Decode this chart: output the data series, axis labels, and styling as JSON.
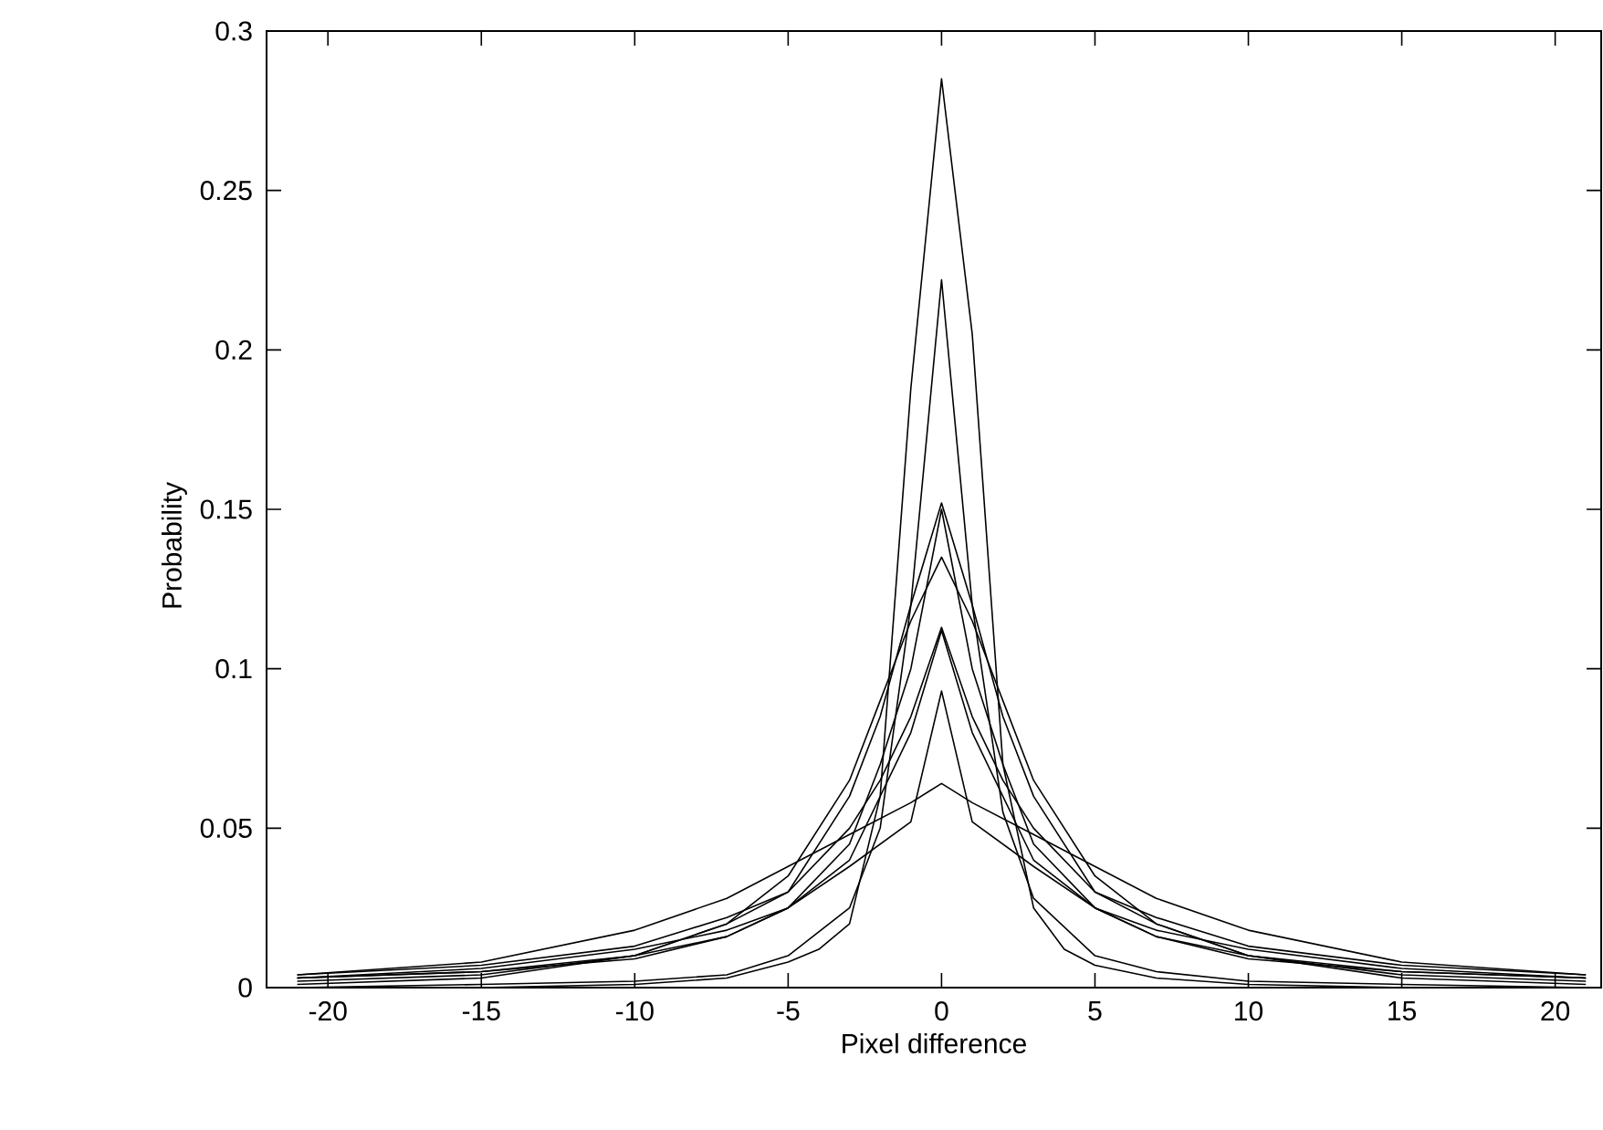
{
  "chart_data": {
    "type": "line",
    "xlabel": "Pixel difference",
    "ylabel": "Probability",
    "xlim": [
      -22,
      21.5
    ],
    "ylim": [
      0,
      0.3
    ],
    "xticks": [
      -20,
      -15,
      -10,
      -5,
      0,
      5,
      10,
      15,
      20
    ],
    "yticks": [
      0,
      0.05,
      0.1,
      0.15,
      0.2,
      0.25,
      0.3
    ],
    "grid": false,
    "marker": "none",
    "line_style": "solid",
    "series": [
      {
        "color": "#000000",
        "x": [
          -21,
          -15,
          -10,
          -7,
          -5,
          -4,
          -3,
          -2,
          -1,
          0,
          1,
          2,
          3,
          4,
          5,
          7,
          10,
          15,
          21
        ],
        "values": [
          0,
          0,
          0.001,
          0.003,
          0.008,
          0.012,
          0.02,
          0.06,
          0.188,
          0.285,
          0.205,
          0.07,
          0.025,
          0.012,
          0.007,
          0.003,
          0.001,
          0,
          0
        ]
      },
      {
        "color": "#000000",
        "x": [
          -21,
          -15,
          -10,
          -7,
          -5,
          -3,
          -2,
          -1,
          0,
          1,
          2,
          3,
          5,
          7,
          10,
          15,
          21
        ],
        "values": [
          0,
          0.001,
          0.002,
          0.004,
          0.01,
          0.025,
          0.05,
          0.12,
          0.222,
          0.12,
          0.055,
          0.028,
          0.01,
          0.005,
          0.002,
          0.001,
          0
        ]
      },
      {
        "color": "#000000",
        "x": [
          -21,
          -15,
          -10,
          -7,
          -5,
          -3,
          -2,
          -1,
          0,
          1,
          2,
          3,
          5,
          7,
          10,
          15,
          21
        ],
        "values": [
          0.002,
          0.004,
          0.01,
          0.02,
          0.03,
          0.06,
          0.085,
          0.12,
          0.152,
          0.12,
          0.085,
          0.06,
          0.03,
          0.02,
          0.01,
          0.004,
          0.002
        ]
      },
      {
        "color": "#000000",
        "x": [
          -21,
          -15,
          -10,
          -7,
          -5,
          -3,
          -2,
          -1,
          0,
          1,
          2,
          3,
          5,
          7,
          10,
          15,
          21
        ],
        "values": [
          0.003,
          0.005,
          0.009,
          0.016,
          0.025,
          0.045,
          0.07,
          0.1,
          0.15,
          0.1,
          0.07,
          0.045,
          0.025,
          0.016,
          0.009,
          0.005,
          0.003
        ]
      },
      {
        "color": "#000000",
        "x": [
          -21,
          -15,
          -10,
          -7,
          -5,
          -3,
          -2,
          -1,
          0,
          1,
          2,
          3,
          5,
          7,
          10,
          15,
          21
        ],
        "values": [
          0.001,
          0.003,
          0.01,
          0.02,
          0.035,
          0.065,
          0.09,
          0.115,
          0.135,
          0.115,
          0.09,
          0.065,
          0.035,
          0.02,
          0.01,
          0.003,
          0.001
        ]
      },
      {
        "color": "#000000",
        "x": [
          -21,
          -15,
          -10,
          -7,
          -5,
          -3,
          -2,
          -1,
          0,
          1,
          2,
          3,
          5,
          7,
          10,
          15,
          21
        ],
        "values": [
          0.004,
          0.007,
          0.013,
          0.022,
          0.03,
          0.05,
          0.065,
          0.085,
          0.113,
          0.085,
          0.065,
          0.05,
          0.03,
          0.022,
          0.013,
          0.007,
          0.004
        ]
      },
      {
        "color": "#000000",
        "x": [
          -21,
          -15,
          -10,
          -7,
          -5,
          -3,
          -2,
          -1,
          0,
          1,
          2,
          3,
          5,
          7,
          10,
          15,
          21
        ],
        "values": [
          0.003,
          0.006,
          0.012,
          0.018,
          0.025,
          0.04,
          0.06,
          0.08,
          0.112,
          0.08,
          0.06,
          0.04,
          0.025,
          0.018,
          0.012,
          0.006,
          0.003
        ]
      },
      {
        "color": "#000000",
        "x": [
          -21,
          -15,
          -10,
          -7,
          -5,
          -3,
          -2,
          -1,
          0,
          1,
          2,
          3,
          5,
          7,
          10,
          15,
          21
        ],
        "values": [
          0.003,
          0.005,
          0.01,
          0.016,
          0.025,
          0.038,
          0.045,
          0.052,
          0.093,
          0.052,
          0.045,
          0.038,
          0.025,
          0.016,
          0.01,
          0.005,
          0.003
        ]
      },
      {
        "color": "#000000",
        "x": [
          -21,
          -15,
          -10,
          -7,
          -5,
          -3,
          -2,
          -1,
          0,
          1,
          2,
          3,
          5,
          7,
          10,
          15,
          21
        ],
        "values": [
          0.004,
          0.008,
          0.018,
          0.028,
          0.038,
          0.048,
          0.053,
          0.058,
          0.064,
          0.058,
          0.053,
          0.048,
          0.038,
          0.028,
          0.018,
          0.008,
          0.004
        ]
      }
    ]
  }
}
